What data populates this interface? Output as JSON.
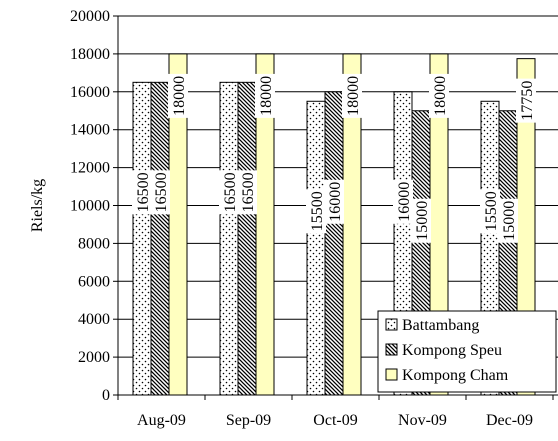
{
  "chart_data": {
    "type": "bar",
    "title": "",
    "xlabel": "",
    "ylabel": "Riels/kg",
    "ylim": [
      0,
      20000
    ],
    "yticks": [
      0,
      2000,
      4000,
      6000,
      8000,
      10000,
      12000,
      14000,
      16000,
      18000,
      20000
    ],
    "categories": [
      "Aug-09",
      "Sep-09",
      "Oct-09",
      "Nov-09",
      "Dec-09"
    ],
    "series": [
      {
        "name": "Battambang",
        "values": [
          16500,
          16500,
          15500,
          16000,
          15500
        ],
        "labels": [
          "16500",
          "16500",
          "15500",
          "16000",
          "15500"
        ],
        "pattern": "dots"
      },
      {
        "name": "Kompong Speu",
        "values": [
          16500,
          16500,
          16000,
          15000,
          15000
        ],
        "labels": [
          "16500",
          "16500",
          "16000",
          "15000",
          "15000"
        ],
        "pattern": "diagonal-hatch"
      },
      {
        "name": "Kompong Cham",
        "values": [
          18000,
          18000,
          18000,
          18000,
          17750
        ],
        "labels": [
          "18000",
          "18000",
          "18000",
          "18000",
          "17750"
        ],
        "pattern": "solid",
        "color": "#ffffc0"
      }
    ],
    "grid": true,
    "legend_position": "bottom-right"
  }
}
